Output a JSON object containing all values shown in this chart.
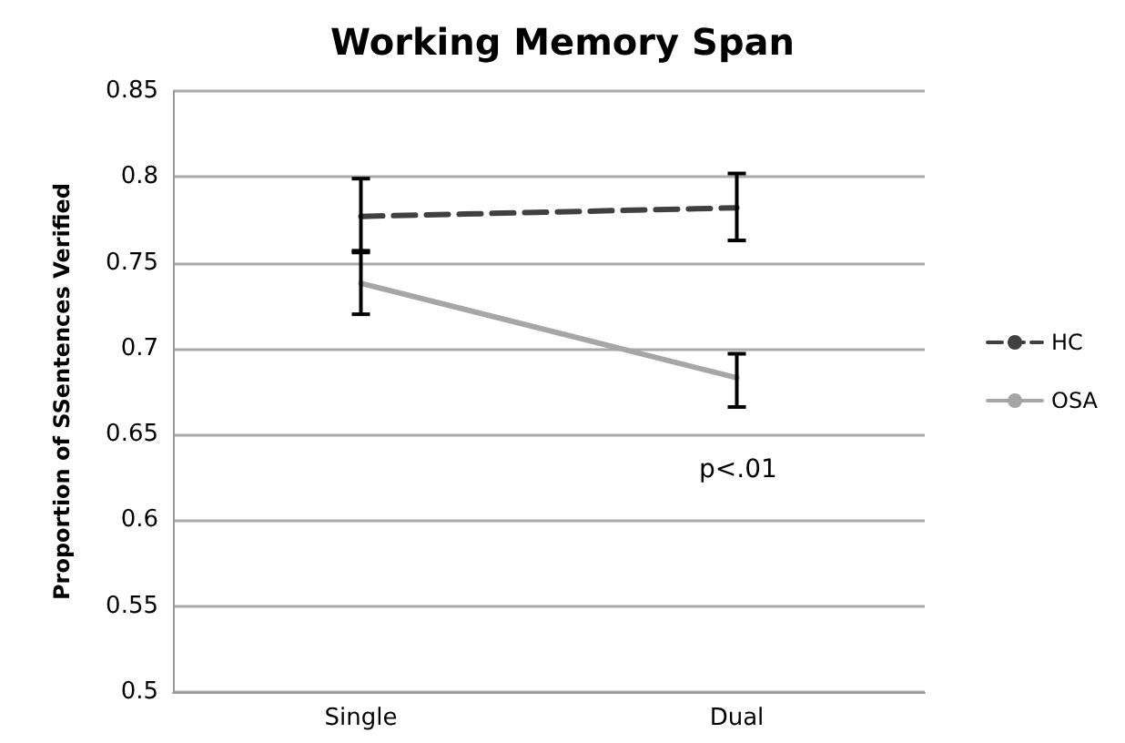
{
  "chart_data": {
    "type": "line",
    "title": "Working Memory Span",
    "ylabel": "Proportion of SSentences Verified",
    "categories": [
      "Single",
      "Dual"
    ],
    "series": [
      {
        "name": "HC",
        "color": "#404040",
        "values": [
          0.777,
          0.782
        ],
        "errors": [
          [
            0.757,
            0.799
          ],
          [
            0.763,
            0.802
          ]
        ],
        "line_style": "dashed"
      },
      {
        "name": "OSA",
        "color": "#a6a6a6",
        "values": [
          0.738,
          0.683
        ],
        "errors": [
          [
            0.72,
            0.756
          ],
          [
            0.666,
            0.697
          ]
        ],
        "line_style": "solid"
      }
    ],
    "ylim": [
      0.5,
      0.85
    ],
    "yticks": [
      0.5,
      0.55,
      0.6,
      0.65,
      0.7,
      0.75,
      0.8,
      0.85
    ],
    "annotations": [
      "p<.01"
    ],
    "grid": "y",
    "legend": "right",
    "marker": "none"
  }
}
